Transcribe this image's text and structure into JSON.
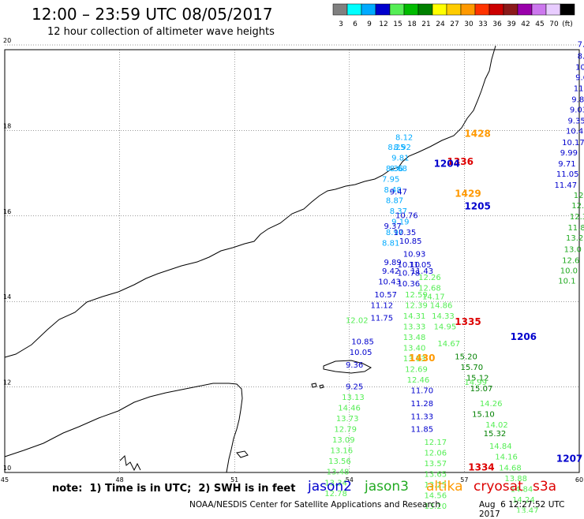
{
  "header": {
    "title": "12:00 – 23:59 UTC 08/05/2017",
    "subtitle": "12 hour collection of altimeter wave heights"
  },
  "color_scale": {
    "unit_label": "(ft)",
    "entries": [
      {
        "label": "3",
        "color": "#808080"
      },
      {
        "label": "6",
        "color": "#00ffff"
      },
      {
        "label": "9",
        "color": "#00aaff"
      },
      {
        "label": "12",
        "color": "#0000cd"
      },
      {
        "label": "15",
        "color": "#55ee55"
      },
      {
        "label": "18",
        "color": "#00bb00"
      },
      {
        "label": "21",
        "color": "#008000"
      },
      {
        "label": "24",
        "color": "#ffff00"
      },
      {
        "label": "27",
        "color": "#ffcc00"
      },
      {
        "label": "30",
        "color": "#ff9900"
      },
      {
        "label": "33",
        "color": "#ff3300"
      },
      {
        "label": "36",
        "color": "#cc0000"
      },
      {
        "label": "39",
        "color": "#8b1a1a"
      },
      {
        "label": "42",
        "color": "#9900aa"
      },
      {
        "label": "45",
        "color": "#cc77ee"
      },
      {
        "label": "70",
        "color": "#e8ccff"
      },
      {
        "label": "",
        "color": "#000000"
      }
    ]
  },
  "axes": {
    "lon_ticks": [
      "45",
      "48",
      "51",
      "54",
      "57",
      "60"
    ],
    "lat_ticks": [
      "10",
      "12",
      "14",
      "16",
      "18",
      "20"
    ]
  },
  "satellites": [
    {
      "name": "jason2",
      "color": "#0000cd"
    },
    {
      "name": "jason3",
      "color": "#22aa22"
    },
    {
      "name": "altika",
      "color": "#ff9900"
    },
    {
      "name": "cryosat",
      "color": "#dd0000"
    },
    {
      "name": "s3a",
      "color": "#dd0000"
    }
  ],
  "time_labels": [
    {
      "text": "1428",
      "lon": 57.0,
      "lat": 17.85,
      "color": "#ff9900"
    },
    {
      "text": "1336",
      "lon": 56.55,
      "lat": 17.2,
      "color": "#dd0000"
    },
    {
      "text": "1204",
      "lon": 56.2,
      "lat": 17.15,
      "color": "#0000cd"
    },
    {
      "text": "1429",
      "lon": 56.75,
      "lat": 16.45,
      "color": "#ff9900"
    },
    {
      "text": "1205",
      "lon": 57.0,
      "lat": 16.15,
      "color": "#0000cd"
    },
    {
      "text": "1335",
      "lon": 56.75,
      "lat": 13.45,
      "color": "#dd0000"
    },
    {
      "text": "1206",
      "lon": 58.2,
      "lat": 13.1,
      "color": "#0000cd"
    },
    {
      "text": "1430",
      "lon": 55.55,
      "lat": 12.6,
      "color": "#ff9900"
    },
    {
      "text": "1207",
      "lon": 59.4,
      "lat": 10.25,
      "color": "#0000cd"
    },
    {
      "text": "1334",
      "lon": 57.1,
      "lat": 10.05,
      "color": "#dd0000"
    }
  ],
  "tracks": [
    {
      "color": "#0000cd",
      "points": [
        [
          "7.71",
          59.95,
          19.95
        ],
        [
          "8.77",
          59.95,
          19.68
        ],
        [
          "10.21",
          59.9,
          19.42
        ],
        [
          "9.66",
          59.9,
          19.18
        ],
        [
          "11.12",
          59.85,
          18.92
        ],
        [
          "9.84",
          59.8,
          18.66
        ],
        [
          "9.03",
          59.75,
          18.42
        ],
        [
          "9.35",
          59.7,
          18.16
        ],
        [
          "10.47",
          59.65,
          17.92
        ],
        [
          "10.17",
          59.55,
          17.66
        ],
        [
          "9.99",
          59.5,
          17.42
        ],
        [
          "9.71",
          59.45,
          17.16
        ],
        [
          "11.05",
          59.4,
          16.92
        ],
        [
          "11.47",
          59.35,
          16.66
        ]
      ]
    },
    {
      "color": "#22aa22",
      "points": [
        [
          "12.43",
          59.85,
          16.42
        ],
        [
          "12.32",
          59.8,
          16.18
        ],
        [
          "12.30",
          59.75,
          15.92
        ],
        [
          "11.8",
          59.7,
          15.66
        ],
        [
          "13.2",
          59.65,
          15.42
        ],
        [
          "13.0",
          59.6,
          15.16
        ],
        [
          "12.6",
          59.55,
          14.9
        ],
        [
          "10.0",
          59.5,
          14.66
        ],
        [
          "10.1",
          59.45,
          14.42
        ]
      ]
    },
    {
      "color": "#00aaff",
      "points": [
        [
          "8.12",
          55.2,
          17.78
        ],
        [
          "8.25",
          55.0,
          17.55
        ],
        [
          "8.92",
          55.15,
          17.55
        ],
        [
          "9.81",
          55.1,
          17.3
        ],
        [
          "8.36",
          54.95,
          17.05
        ],
        [
          "8.68",
          55.05,
          17.05
        ],
        [
          "7.95",
          54.85,
          16.8
        ],
        [
          "8.48",
          54.9,
          16.55
        ],
        [
          "8.87",
          54.95,
          16.3
        ],
        [
          "8.37",
          55.05,
          16.05
        ],
        [
          "9.19",
          55.1,
          15.8
        ],
        [
          "8.97",
          54.95,
          15.55
        ],
        [
          "8.81",
          54.85,
          15.3
        ]
      ]
    },
    {
      "color": "#0000cd",
      "points": [
        [
          "9.47",
          55.05,
          16.5
        ],
        [
          "10.76",
          55.2,
          15.95
        ],
        [
          "9.37",
          54.9,
          15.7
        ],
        [
          "10.35",
          55.15,
          15.55
        ],
        [
          "10.85",
          55.3,
          15.35
        ],
        [
          "10.93",
          55.4,
          15.05
        ],
        [
          "9.89",
          54.9,
          14.85
        ],
        [
          "10.10",
          55.25,
          14.8
        ],
        [
          "11.05",
          55.55,
          14.8
        ],
        [
          "9.42",
          54.85,
          14.65
        ],
        [
          "10.78",
          55.25,
          14.6
        ],
        [
          "11.43",
          55.6,
          14.65
        ],
        [
          "10.43",
          54.75,
          14.4
        ],
        [
          "10.36",
          55.25,
          14.35
        ],
        [
          "10.57",
          54.65,
          14.1
        ],
        [
          "11.12",
          54.55,
          13.85
        ],
        [
          "11.75",
          54.55,
          13.55
        ],
        [
          "10.85",
          54.05,
          13.0
        ],
        [
          "10.05",
          54.0,
          12.75
        ],
        [
          "9.36",
          53.9,
          12.45
        ],
        [
          "9.25",
          53.9,
          11.95
        ],
        [
          "11.70",
          55.6,
          11.85
        ],
        [
          "11.28",
          55.6,
          11.55
        ],
        [
          "11.33",
          55.6,
          11.25
        ],
        [
          "11.85",
          55.6,
          10.95
        ]
      ]
    },
    {
      "color": "#55ee55",
      "points": [
        [
          "12.26",
          55.8,
          14.5
        ],
        [
          "12.68",
          55.8,
          14.25
        ],
        [
          "12.59",
          55.45,
          14.1
        ],
        [
          "12.39",
          55.45,
          13.85
        ],
        [
          "14.17",
          55.9,
          14.05
        ],
        [
          "14.86",
          56.1,
          13.85
        ],
        [
          "14.31",
          55.4,
          13.6
        ],
        [
          "14.33",
          56.15,
          13.6
        ],
        [
          "13.33",
          55.4,
          13.35
        ],
        [
          "14.95",
          56.2,
          13.35
        ],
        [
          "13.48",
          55.4,
          13.1
        ],
        [
          "13.40",
          55.4,
          12.85
        ],
        [
          "14.67",
          56.3,
          12.95
        ],
        [
          "13.13",
          55.4,
          12.6
        ],
        [
          "12.69",
          55.45,
          12.35
        ],
        [
          "12.46",
          55.5,
          12.1
        ]
      ]
    },
    {
      "color": "#55ee55",
      "points": [
        [
          "12.02",
          53.9,
          13.5
        ],
        [
          "13.13",
          53.8,
          11.7
        ],
        [
          "14.46",
          53.7,
          11.45
        ],
        [
          "13.73",
          53.65,
          11.2
        ],
        [
          "12.79",
          53.6,
          10.95
        ],
        [
          "13.09",
          53.55,
          10.7
        ],
        [
          "13.16",
          53.5,
          10.45
        ],
        [
          "13.56",
          53.45,
          10.2
        ],
        [
          "13.48",
          53.4,
          9.95
        ],
        [
          "13.34",
          53.35,
          9.7
        ],
        [
          "12.78",
          53.35,
          9.45
        ]
      ]
    },
    {
      "color": "#55ee55",
      "points": [
        [
          "12.17",
          55.95,
          10.65
        ],
        [
          "12.06",
          55.95,
          10.4
        ],
        [
          "13.57",
          55.95,
          10.15
        ],
        [
          "13.65",
          55.95,
          9.9
        ],
        [
          "13.25",
          55.95,
          9.65
        ],
        [
          "14.56",
          55.95,
          9.4
        ],
        [
          "13.20",
          55.95,
          9.15
        ]
      ]
    },
    {
      "color": "#008000",
      "points": [
        [
          "15.20",
          56.75,
          12.65
        ],
        [
          "15.70",
          56.9,
          12.4
        ],
        [
          "15.12",
          57.05,
          12.15
        ],
        [
          "15.07",
          57.15,
          11.9
        ],
        [
          "15.10",
          57.2,
          11.3
        ],
        [
          "15.32",
          57.5,
          10.85
        ]
      ]
    },
    {
      "color": "#55ee55",
      "points": [
        [
          "14.99",
          57.0,
          12.05
        ],
        [
          "14.26",
          57.4,
          11.55
        ],
        [
          "14.02",
          57.55,
          11.05
        ],
        [
          "14.84",
          57.65,
          10.55
        ],
        [
          "14.16",
          57.8,
          10.3
        ],
        [
          "14.68",
          57.9,
          10.05
        ],
        [
          "13.88",
          58.05,
          9.8
        ],
        [
          "14.84",
          58.2,
          9.55
        ],
        [
          "14.24",
          58.25,
          9.3
        ],
        [
          "13.47",
          58.35,
          9.05
        ]
      ]
    }
  ]
}
